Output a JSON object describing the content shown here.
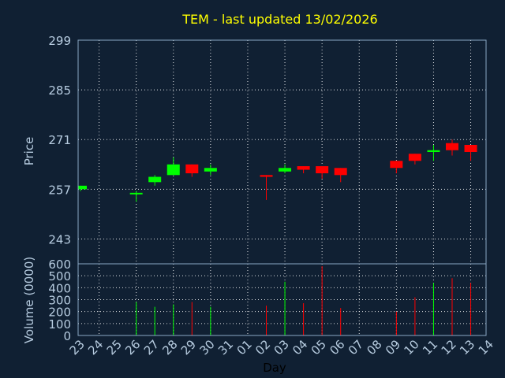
{
  "colors": {
    "background": "#102033",
    "up": "#00ff00",
    "down": "#ff0000",
    "title": "#ffff00",
    "text": "#b7cce0"
  },
  "chart_data": [
    {
      "type": "candlestick",
      "title": "TEM - last updated 13/02/2026",
      "ylabel": "Price",
      "ylim": [
        236,
        299
      ],
      "yticks": [
        243,
        257,
        271,
        285,
        299
      ],
      "grid": true,
      "candles": [
        {
          "x": "23",
          "open": 257.0,
          "high": 258.0,
          "low": 256.5,
          "close": 258.0
        },
        {
          "x": "26",
          "open": 256.0,
          "high": 256.5,
          "low": 253.5,
          "close": 256.0
        },
        {
          "x": "27",
          "open": 259.0,
          "high": 261.0,
          "low": 258.0,
          "close": 260.5
        },
        {
          "x": "28",
          "open": 261.0,
          "high": 266.0,
          "low": 261.0,
          "close": 264.0
        },
        {
          "x": "29",
          "open": 264.0,
          "high": 264.0,
          "low": 260.5,
          "close": 261.5
        },
        {
          "x": "30",
          "open": 262.0,
          "high": 264.0,
          "low": 261.0,
          "close": 263.0
        },
        {
          "x": "02",
          "open": 261.0,
          "high": 261.0,
          "low": 254.0,
          "close": 260.5
        },
        {
          "x": "03",
          "open": 262.0,
          "high": 264.0,
          "low": 261.5,
          "close": 263.0
        },
        {
          "x": "04",
          "open": 263.5,
          "high": 263.5,
          "low": 261.5,
          "close": 262.5
        },
        {
          "x": "05",
          "open": 263.5,
          "high": 263.5,
          "low": 260.0,
          "close": 261.5
        },
        {
          "x": "06",
          "open": 263.0,
          "high": 263.0,
          "low": 259.0,
          "close": 261.0
        },
        {
          "x": "09",
          "open": 265.0,
          "high": 265.0,
          "low": 261.5,
          "close": 263.0
        },
        {
          "x": "10",
          "open": 267.0,
          "high": 267.0,
          "low": 264.0,
          "close": 265.0
        },
        {
          "x": "11",
          "open": 267.5,
          "high": 269.5,
          "low": 265.0,
          "close": 268.0
        },
        {
          "x": "12",
          "open": 270.0,
          "high": 271.0,
          "low": 266.5,
          "close": 268.0
        },
        {
          "x": "13",
          "open": 269.5,
          "high": 269.5,
          "low": 265.0,
          "close": 267.5
        }
      ]
    },
    {
      "type": "bar",
      "ylabel": "Volume (0000)",
      "xlabel": "Day",
      "ylim": [
        0,
        600
      ],
      "yticks": [
        0,
        100,
        200,
        300,
        400,
        500,
        600
      ],
      "categories": [
        "23",
        "24",
        "25",
        "26",
        "27",
        "28",
        "29",
        "30",
        "31",
        "01",
        "02",
        "03",
        "04",
        "05",
        "06",
        "07",
        "08",
        "09",
        "10",
        "11",
        "12",
        "13",
        "14"
      ],
      "volumes": [
        {
          "x": "26",
          "value": 280,
          "direction": "up"
        },
        {
          "x": "27",
          "value": 240,
          "direction": "up"
        },
        {
          "x": "28",
          "value": 260,
          "direction": "up"
        },
        {
          "x": "29",
          "value": 280,
          "direction": "down"
        },
        {
          "x": "30",
          "value": 240,
          "direction": "up"
        },
        {
          "x": "02",
          "value": 250,
          "direction": "down"
        },
        {
          "x": "03",
          "value": 450,
          "direction": "up"
        },
        {
          "x": "04",
          "value": 270,
          "direction": "down"
        },
        {
          "x": "05",
          "value": 580,
          "direction": "down"
        },
        {
          "x": "06",
          "value": 230,
          "direction": "down"
        },
        {
          "x": "09",
          "value": 200,
          "direction": "down"
        },
        {
          "x": "10",
          "value": 320,
          "direction": "down"
        },
        {
          "x": "11",
          "value": 440,
          "direction": "up"
        },
        {
          "x": "12",
          "value": 480,
          "direction": "down"
        },
        {
          "x": "13",
          "value": 440,
          "direction": "down"
        }
      ]
    }
  ]
}
